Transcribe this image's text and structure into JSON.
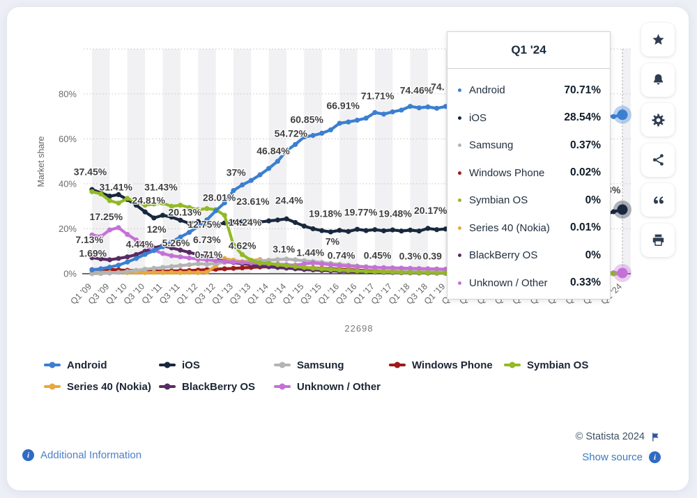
{
  "page": {
    "background": "#eceff6",
    "card_background": "#ffffff"
  },
  "chart_data": {
    "type": "line",
    "title": "",
    "ylabel": "Market share",
    "watermark": "22698",
    "ylim": [
      0,
      100
    ],
    "yticks": [
      {
        "value": 0,
        "label": "0%"
      },
      {
        "value": 20,
        "label": "20%"
      },
      {
        "value": 40,
        "label": "40%"
      },
      {
        "value": 60,
        "label": "60%"
      },
      {
        "value": 80,
        "label": "80%"
      }
    ],
    "gridlines_at": [
      20,
      40,
      60,
      80,
      100
    ],
    "x_tick_labels": [
      "Q1 '09",
      "Q3 '09",
      "Q1 '10",
      "Q3 '10",
      "Q1 '11",
      "Q3 '11",
      "Q1 '12",
      "Q3 '12",
      "Q1 '13",
      "Q3 '13",
      "Q1 '14",
      "Q3 '14",
      "Q1 '15",
      "Q3 '15",
      "Q1 '16",
      "Q3 '16",
      "Q1 '17",
      "Q3 '17",
      "Q1 '18",
      "Q3 '18",
      "Q1 '19",
      "Q3 '19",
      "Q1 '20",
      "Q3 '20",
      "Q1 '21",
      "Q3 '21",
      "Q1 '22",
      "Q3 '22",
      "Q1 '23",
      "Q3 '23",
      "Q1 '24"
    ],
    "x_note": "61 quarterly points from Q1 2009 to Q1 2024",
    "series": [
      {
        "name": "Android",
        "color": "#3b7fd0",
        "values": [
          1.69,
          2.2,
          2.9,
          3.8,
          5.2,
          6.8,
          8.6,
          10.3,
          12.0,
          14.2,
          16.3,
          18.4,
          21.0,
          24.0,
          28.01,
          31.5,
          37.0,
          39.5,
          41.5,
          44.0,
          46.84,
          50.0,
          54.72,
          57.5,
          60.85,
          61.5,
          62.5,
          64.0,
          66.91,
          67.5,
          68.3,
          69.2,
          71.71,
          71.0,
          72.0,
          72.8,
          74.46,
          73.8,
          74.2,
          73.6,
          74.4,
          73.9,
          74.1,
          73.5,
          73.3,
          72.8,
          74.1,
          72.9,
          72.2,
          73.0,
          72.4,
          71.8,
          71.4,
          71.9,
          71.1,
          70.6,
          71.8,
          70.9,
          70.4,
          69.9,
          70.71
        ]
      },
      {
        "name": "iOS",
        "color": "#19283e",
        "values": [
          37.45,
          36.0,
          34.5,
          35.2,
          33.0,
          30.5,
          27.5,
          24.81,
          26.0,
          25.2,
          23.8,
          22.4,
          23.2,
          22.2,
          21.6,
          22.6,
          22.9,
          23.2,
          23.61,
          23.0,
          23.5,
          23.9,
          24.4,
          22.8,
          21.2,
          20.0,
          19.18,
          18.6,
          19.3,
          18.8,
          19.77,
          19.2,
          19.6,
          19.1,
          19.48,
          19.0,
          19.4,
          19.0,
          20.17,
          19.6,
          19.9,
          19.4,
          20.3,
          19.8,
          19.5,
          20.2,
          20.6,
          20.1,
          20.4,
          20.9,
          20.5,
          21.0,
          21.4,
          21.0,
          21.6,
          22.3,
          23.4,
          24.8,
          26.2,
          27.6,
          28.54
        ]
      },
      {
        "name": "Samsung",
        "color": "#b4b4b4",
        "values": [
          0.0,
          0.1,
          0.3,
          0.6,
          1.0,
          1.5,
          2.0,
          2.4,
          2.8,
          3.2,
          3.6,
          4.0,
          4.44,
          4.2,
          4.6,
          5.0,
          5.26,
          5.0,
          5.5,
          5.8,
          6.0,
          6.3,
          6.5,
          6.2,
          5.8,
          5.4,
          5.0,
          4.6,
          4.2,
          3.8,
          3.4,
          3.1,
          2.8,
          2.5,
          2.2,
          2.0,
          1.8,
          1.6,
          1.44,
          1.3,
          1.2,
          1.1,
          1.0,
          0.9,
          0.8,
          0.74,
          0.7,
          0.65,
          0.6,
          0.55,
          0.5,
          0.45,
          0.45,
          0.4,
          0.4,
          0.38,
          0.37,
          0.36,
          0.36,
          0.37,
          0.37
        ]
      },
      {
        "name": "Windows Phone",
        "color": "#9e1a1a",
        "values": [
          1.8,
          2.0,
          1.9,
          1.7,
          1.5,
          1.4,
          1.3,
          1.2,
          1.1,
          1.2,
          1.3,
          1.4,
          1.6,
          1.8,
          2.0,
          2.2,
          2.4,
          2.6,
          2.8,
          3.0,
          3.1,
          3.0,
          2.9,
          2.8,
          2.7,
          2.6,
          2.4,
          2.2,
          2.0,
          1.8,
          1.6,
          1.4,
          1.2,
          1.0,
          0.9,
          0.8,
          0.7,
          0.6,
          0.5,
          0.45,
          0.4,
          0.35,
          0.3,
          0.25,
          0.2,
          0.17,
          0.15,
          0.12,
          0.1,
          0.09,
          0.08,
          0.07,
          0.06,
          0.05,
          0.04,
          0.04,
          0.03,
          0.03,
          0.02,
          0.02,
          0.02
        ]
      },
      {
        "name": "Symbian OS",
        "color": "#93b927",
        "values": [
          36.5,
          35.5,
          32.5,
          31.41,
          33.5,
          32.0,
          30.5,
          31.0,
          31.43,
          30.0,
          30.5,
          29.5,
          28.5,
          29.0,
          28.5,
          26.0,
          12.75,
          8.5,
          6.0,
          4.8,
          4.62,
          4.0,
          3.6,
          3.2,
          2.8,
          2.4,
          2.1,
          1.8,
          1.6,
          1.4,
          1.2,
          1.05,
          0.9,
          0.8,
          0.7,
          0.6,
          0.55,
          0.5,
          0.45,
          0.4,
          0.35,
          0.3,
          0.28,
          0.25,
          0.22,
          0.2,
          0.18,
          0.15,
          0.13,
          0.11,
          0.1,
          0.08,
          0.07,
          0.06,
          0.05,
          0.04,
          0.03,
          0.02,
          0.01,
          0.01,
          0.0
        ]
      },
      {
        "name": "Series 40 (Nokia)",
        "color": "#e7a83e",
        "values": [
          0.5,
          0.6,
          0.5,
          0.6,
          0.5,
          0.6,
          0.5,
          0.6,
          0.5,
          0.6,
          0.5,
          0.6,
          0.5,
          0.71,
          3.5,
          6.73,
          6.0,
          5.3,
          5.9,
          6.3,
          4.62,
          4.1,
          3.6,
          3.2,
          2.8,
          2.5,
          2.2,
          1.9,
          1.7,
          1.5,
          1.3,
          1.15,
          1.0,
          0.9,
          0.8,
          0.7,
          0.65,
          0.6,
          0.55,
          0.5,
          0.45,
          0.4,
          0.35,
          0.3,
          0.27,
          0.24,
          0.2,
          0.18,
          0.15,
          0.13,
          0.11,
          0.1,
          0.08,
          0.07,
          0.06,
          0.05,
          0.04,
          0.03,
          0.02,
          0.02,
          0.01
        ]
      },
      {
        "name": "BlackBerry OS",
        "color": "#582b63",
        "values": [
          7.13,
          6.6,
          6.2,
          6.8,
          7.5,
          8.5,
          10.0,
          11.5,
          12.5,
          11.5,
          10.5,
          9.5,
          8.5,
          7.5,
          6.5,
          5.5,
          5.0,
          4.5,
          4.0,
          3.5,
          3.1,
          2.8,
          2.5,
          2.2,
          1.9,
          1.7,
          1.5,
          1.3,
          1.1,
          1.0,
          0.9,
          0.8,
          0.7,
          0.6,
          0.5,
          0.45,
          0.4,
          0.35,
          0.3,
          0.27,
          0.24,
          0.2,
          0.18,
          0.15,
          0.13,
          0.11,
          0.1,
          0.08,
          0.07,
          0.06,
          0.05,
          0.05,
          0.04,
          0.04,
          0.03,
          0.03,
          0.02,
          0.02,
          0.01,
          0.01,
          0.0
        ]
      },
      {
        "name": "Unknown / Other",
        "color": "#c471d6",
        "values": [
          17.25,
          16.5,
          19.5,
          20.5,
          17.5,
          15.0,
          12.5,
          10.5,
          9.0,
          8.0,
          7.5,
          7.0,
          6.5,
          6.2,
          5.8,
          5.5,
          5.2,
          5.0,
          4.8,
          4.6,
          4.4,
          4.2,
          4.0,
          3.8,
          4.4,
          4.8,
          4.4,
          4.0,
          3.7,
          3.4,
          3.2,
          3.0,
          2.8,
          2.7,
          2.6,
          2.5,
          2.4,
          2.3,
          2.2,
          2.1,
          2.0,
          1.9,
          1.8,
          1.7,
          1.6,
          1.5,
          1.4,
          1.3,
          1.2,
          1.1,
          1.0,
          0.9,
          0.85,
          0.8,
          0.7,
          0.6,
          0.55,
          0.5,
          0.45,
          0.4,
          0.33
        ]
      }
    ],
    "annotations": [
      {
        "text": "37.45%",
        "xi": -0.2,
        "y": 45.3
      },
      {
        "text": "31.41%",
        "xi": 2.7,
        "y": 38.4
      },
      {
        "text": "31.43%",
        "xi": 7.8,
        "y": 38.4
      },
      {
        "text": "24.81%",
        "xi": 6.4,
        "y": 32.6
      },
      {
        "text": "20.13%",
        "xi": 10.5,
        "y": 27.3
      },
      {
        "text": "17.25%",
        "xi": 1.6,
        "y": 25.2
      },
      {
        "text": "12%",
        "xi": 7.3,
        "y": 19.6
      },
      {
        "text": "28.01%",
        "xi": 14.4,
        "y": 33.8
      },
      {
        "text": "12.75%",
        "xi": 12.7,
        "y": 21.8
      },
      {
        "text": "7.13%",
        "xi": -0.3,
        "y": 15.0
      },
      {
        "text": "4.44%",
        "xi": 5.4,
        "y": 13.0
      },
      {
        "text": "5.26%",
        "xi": 9.5,
        "y": 13.7
      },
      {
        "text": "6.73%",
        "xi": 13.0,
        "y": 15.0
      },
      {
        "text": "1.69%",
        "xi": 0.1,
        "y": 9.0
      },
      {
        "text": "0.71%",
        "xi": 13.2,
        "y": 8.4
      },
      {
        "text": "37%",
        "xi": 16.3,
        "y": 45.0
      },
      {
        "text": "46.84%",
        "xi": 20.5,
        "y": 54.6
      },
      {
        "text": "54.72%",
        "xi": 22.5,
        "y": 62.3
      },
      {
        "text": "60.85%",
        "xi": 24.3,
        "y": 68.5
      },
      {
        "text": "66.91%",
        "xi": 28.4,
        "y": 74.7
      },
      {
        "text": "71.71%",
        "xi": 32.3,
        "y": 79.0
      },
      {
        "text": "74.46%",
        "xi": 36.7,
        "y": 81.5
      },
      {
        "text": "74.",
        "xi": 39.1,
        "y": 83.0
      },
      {
        "text": "23.61%",
        "xi": 18.2,
        "y": 32.0
      },
      {
        "text": "24.4%",
        "xi": 22.3,
        "y": 32.6
      },
      {
        "text": "19.18%",
        "xi": 26.4,
        "y": 26.7
      },
      {
        "text": "19.77%",
        "xi": 30.4,
        "y": 27.3
      },
      {
        "text": "19.48%",
        "xi": 34.3,
        "y": 26.7
      },
      {
        "text": "20.17%",
        "xi": 38.3,
        "y": 28.0
      },
      {
        "text": "14.24%",
        "xi": 17.3,
        "y": 22.7
      },
      {
        "text": "7%",
        "xi": 27.2,
        "y": 14.3
      },
      {
        "text": "4.62%",
        "xi": 17.0,
        "y": 12.4
      },
      {
        "text": "3.1%",
        "xi": 21.7,
        "y": 10.9
      },
      {
        "text": "1.44%",
        "xi": 24.7,
        "y": 9.3
      },
      {
        "text": "0.74%",
        "xi": 28.2,
        "y": 8.1
      },
      {
        "text": "0.45%",
        "xi": 32.3,
        "y": 8.1
      },
      {
        "text": "0.3%",
        "xi": 36.0,
        "y": 7.8
      },
      {
        "text": "0.39",
        "xi": 38.5,
        "y": 7.8
      },
      {
        "text": "3%",
        "xi": 59.0,
        "y": 37.2
      }
    ],
    "hover": {
      "category": "Q1 '24",
      "column_index": 60,
      "highlighted_series": [
        "Android",
        "iOS",
        "Unknown / Other"
      ]
    },
    "legend_position": "bottom",
    "grid": true
  },
  "tooltip": {
    "title": "Q1 '24",
    "rows": [
      {
        "name": "Android",
        "value": "70.71%"
      },
      {
        "name": "iOS",
        "value": "28.54%"
      },
      {
        "name": "Samsung",
        "value": "0.37%"
      },
      {
        "name": "Windows Phone",
        "value": "0.02%"
      },
      {
        "name": "Symbian OS",
        "value": "0%"
      },
      {
        "name": "Series 40 (Nokia)",
        "value": "0.01%"
      },
      {
        "name": "BlackBerry OS",
        "value": "0%"
      },
      {
        "name": "Unknown / Other",
        "value": "0.33%"
      }
    ]
  },
  "legend": {
    "items": [
      {
        "label": "Android",
        "color": "#3b7fd0"
      },
      {
        "label": "iOS",
        "color": "#19283e"
      },
      {
        "label": "Samsung",
        "color": "#b4b4b4"
      },
      {
        "label": "Windows Phone",
        "color": "#9e1a1a"
      },
      {
        "label": "Symbian OS",
        "color": "#93b927"
      },
      {
        "label": "Series 40 (Nokia)",
        "color": "#e7a83e"
      },
      {
        "label": "BlackBerry OS",
        "color": "#582b63"
      },
      {
        "label": "Unknown / Other",
        "color": "#c471d6"
      }
    ]
  },
  "sidebar": {
    "buttons": [
      {
        "name": "favorite",
        "icon": "star-icon"
      },
      {
        "name": "notifications",
        "icon": "bell-icon"
      },
      {
        "name": "settings",
        "icon": "gear-icon"
      },
      {
        "name": "share",
        "icon": "share-icon"
      },
      {
        "name": "cite",
        "icon": "quote-icon"
      },
      {
        "name": "print",
        "icon": "print-icon"
      }
    ]
  },
  "footer": {
    "additional_info": "Additional Information",
    "copyright": "© Statista 2024",
    "show_source": "Show source",
    "link_color": "#3a7bbf",
    "flag_color": "#2c55a5"
  }
}
